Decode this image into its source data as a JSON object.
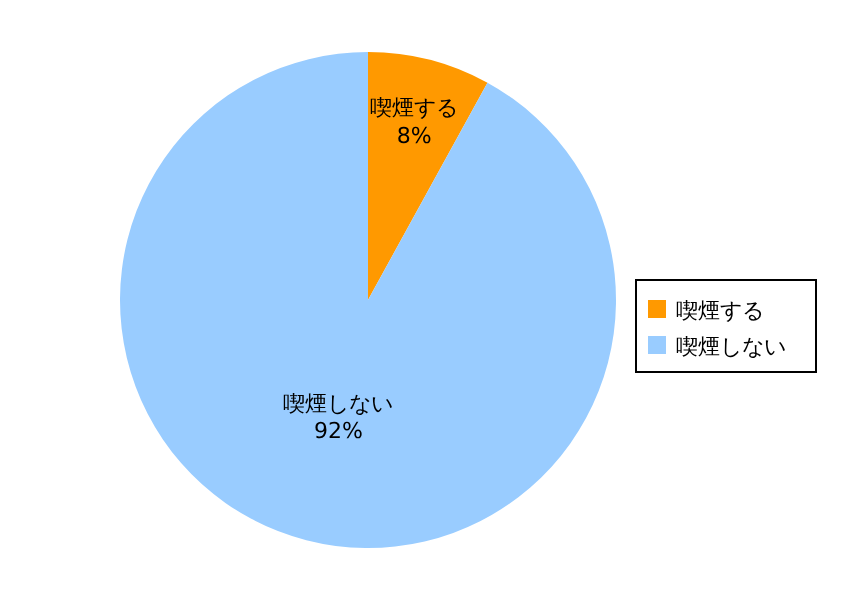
{
  "chart_data": {
    "type": "pie",
    "categories": [
      "喫煙する",
      "喫煙しない"
    ],
    "values": [
      8,
      92
    ],
    "colors": [
      "#ff9900",
      "#99ccff"
    ],
    "value_labels": [
      "8%",
      "92%"
    ],
    "legend": "right"
  }
}
